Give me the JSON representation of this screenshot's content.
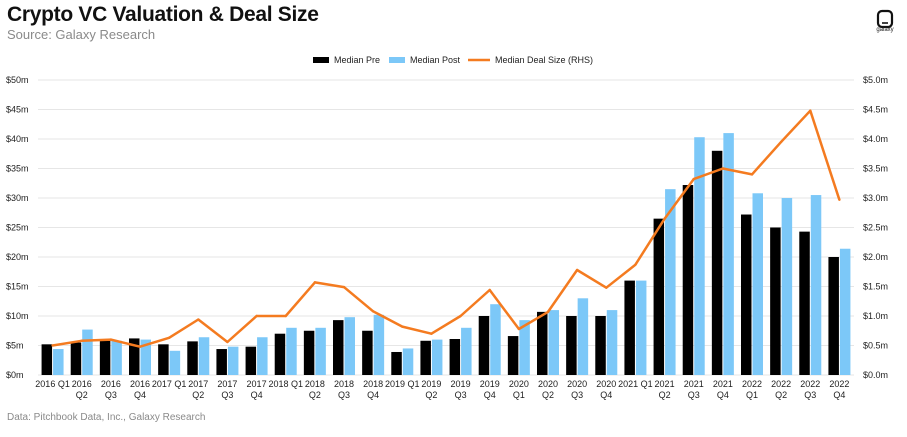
{
  "header": {
    "title": "Crypto VC Valuation & Deal Size",
    "subtitle": "Source: Galaxy Research",
    "logo_text": "galaxy"
  },
  "footer": {
    "note": "Data: Pitchbook Data, Inc., Galaxy Research"
  },
  "colors": {
    "pre": "#000000",
    "post": "#7cc8f8",
    "deal": "#f47b20",
    "grid": "#e6e6e6"
  },
  "chart_data": {
    "type": "bar",
    "title": "Crypto VC Valuation & Deal Size",
    "legend_position": "top-center",
    "categories": [
      [
        "2016 Q1"
      ],
      [
        "2016",
        "Q2"
      ],
      [
        "2016",
        "Q3"
      ],
      [
        "2016",
        "Q4"
      ],
      [
        "2017 Q1"
      ],
      [
        "2017",
        "Q2"
      ],
      [
        "2017",
        "Q3"
      ],
      [
        "2017",
        "Q4"
      ],
      [
        "2018 Q1"
      ],
      [
        "2018",
        "Q2"
      ],
      [
        "2018",
        "Q3"
      ],
      [
        "2018",
        "Q4"
      ],
      [
        "2019 Q1"
      ],
      [
        "2019",
        "Q2"
      ],
      [
        "2019",
        "Q3"
      ],
      [
        "2019",
        "Q4"
      ],
      [
        "2020",
        "Q1"
      ],
      [
        "2020",
        "Q2"
      ],
      [
        "2020",
        "Q3"
      ],
      [
        "2020",
        "Q4"
      ],
      [
        "2021 Q1"
      ],
      [
        "2021",
        "Q2"
      ],
      [
        "2021",
        "Q3"
      ],
      [
        "2021",
        "Q4"
      ],
      [
        "2022",
        "Q1"
      ],
      [
        "2022",
        "Q2"
      ],
      [
        "2022",
        "Q3"
      ],
      [
        "2022",
        "Q4"
      ]
    ],
    "y_left": {
      "ticks": [
        "$0m",
        "$5m",
        "$10m",
        "$15m",
        "$20m",
        "$25m",
        "$30m",
        "$35m",
        "$40m",
        "$45m",
        "$50m"
      ],
      "min": 0,
      "max": 50
    },
    "y_right": {
      "ticks": [
        "$0.0m",
        "$0.5m",
        "$1.0m",
        "$1.5m",
        "$2.0m",
        "$2.5m",
        "$3.0m",
        "$3.5m",
        "$4.0m",
        "$4.5m",
        "$5.0m"
      ],
      "min": 0,
      "max": 5
    },
    "grid": true,
    "series": [
      {
        "name": "Median Pre",
        "type": "bar",
        "axis": "left",
        "values": [
          5.2,
          5.5,
          6.1,
          6.2,
          5.2,
          5.7,
          4.4,
          4.8,
          7.0,
          7.5,
          9.3,
          7.5,
          3.9,
          5.8,
          6.1,
          10.0,
          6.6,
          10.7,
          10.0,
          10.0,
          16.0,
          26.5,
          32.2,
          38.0,
          27.2,
          25.0,
          24.3,
          20.0
        ]
      },
      {
        "name": "Median Post",
        "type": "bar",
        "axis": "left",
        "values": [
          4.4,
          7.7,
          5.8,
          6.0,
          4.1,
          6.4,
          4.8,
          6.4,
          8.0,
          8.0,
          9.8,
          10.2,
          4.5,
          6.0,
          8.0,
          12.0,
          9.3,
          11.0,
          13.0,
          11.0,
          16.0,
          31.5,
          40.3,
          41.0,
          30.8,
          30.0,
          30.5,
          21.4
        ]
      },
      {
        "name": "Median Deal Size (RHS)",
        "type": "line",
        "axis": "right",
        "values": [
          0.5,
          0.58,
          0.6,
          0.48,
          0.63,
          0.94,
          0.56,
          1.0,
          1.0,
          1.57,
          1.49,
          1.08,
          0.82,
          0.7,
          1.0,
          1.44,
          0.78,
          1.07,
          1.78,
          1.48,
          1.87,
          2.65,
          3.32,
          3.5,
          3.4,
          3.95,
          4.48,
          2.97
        ]
      }
    ]
  }
}
